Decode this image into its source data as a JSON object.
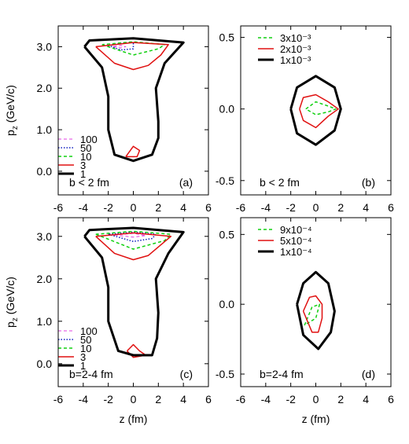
{
  "chart_data": [
    {
      "type": "contour",
      "ylabel": [
        "p",
        "z",
        " (GeV/c)"
      ],
      "xlim": [
        -6,
        6
      ],
      "xticks": [
        -6,
        -4,
        -2,
        0,
        2,
        4,
        6
      ],
      "ylim": [
        -0.57,
        3.5
      ],
      "yticks": [
        {
          "value": 0,
          "label": "0.0"
        },
        {
          "value": 1,
          "label": "1.0"
        },
        {
          "value": 2,
          "label": "2.0"
        },
        {
          "value": 3,
          "label": "3.0"
        }
      ],
      "legend": "lower left",
      "annotation": "b < 2 fm",
      "panel_label": "(a)",
      "series": [
        {
          "name": "100",
          "color": "#e040e0",
          "dash": "dashed",
          "width": 1,
          "x": [
            -1.6,
            -1,
            -0.6,
            -1,
            -1.6
          ],
          "values": [
            3.0,
            2.97,
            3.0,
            3.03,
            3.0
          ]
        },
        {
          "name": "50",
          "color": "#1020c0",
          "dash": "dotted",
          "width": 1.5,
          "x": [
            -2,
            -1,
            0,
            0,
            -1,
            -2
          ],
          "values": [
            3.03,
            2.92,
            2.95,
            3.1,
            3.08,
            3.03
          ]
        },
        {
          "name": "10",
          "color": "#10d010",
          "dash": "dashed",
          "width": 1.5,
          "x": [
            -2.5,
            0,
            2,
            2.5,
            0,
            -2.5
          ],
          "values": [
            3.05,
            2.8,
            2.95,
            3.05,
            3.12,
            3.05
          ]
        },
        {
          "name": "3",
          "color": "#e01010",
          "dash": "solid",
          "width": 1.5,
          "x": [
            -3,
            -1.5,
            0,
            1.2,
            2.2,
            2.8,
            0,
            -3,
            null,
            -0.6,
            0,
            0.5,
            0.3,
            -0.6
          ],
          "values": [
            3.0,
            2.6,
            2.45,
            2.55,
            2.8,
            3.05,
            3.1,
            3.0,
            null,
            0.35,
            0.6,
            0.5,
            0.35,
            0.35
          ]
        },
        {
          "name": "1",
          "color": "#000000",
          "dash": "solid",
          "width": 3,
          "x": [
            -3.9,
            -2.5,
            -2,
            -2,
            -1.5,
            0,
            1.5,
            2,
            2,
            1.8,
            2.5,
            4,
            0,
            -3.5,
            -3.9
          ],
          "values": [
            3.0,
            2.5,
            1.8,
            1.0,
            0.4,
            0.25,
            0.4,
            0.8,
            1.2,
            2.0,
            2.6,
            3.1,
            3.2,
            3.15,
            3.0
          ]
        }
      ]
    },
    {
      "type": "contour",
      "xlim": [
        -6,
        6
      ],
      "xticks": [
        -6,
        -4,
        -2,
        0,
        2,
        4,
        6
      ],
      "ylim": [
        -0.6,
        0.58
      ],
      "yticks": [
        -0.5,
        {
          "value": 0,
          "label": "0.0"
        },
        0.5
      ],
      "legend": "upper left",
      "annotation": "b < 2 fm",
      "panel_label": "(b)",
      "series": [
        {
          "name": "3x10⁻³",
          "color": "#10d010",
          "dash": "dashed",
          "width": 1.5,
          "x": [
            -0.8,
            0,
            1,
            1.6,
            1,
            0,
            -0.8
          ],
          "values": [
            0,
            0.05,
            0.02,
            0,
            -0.02,
            -0.04,
            0
          ]
        },
        {
          "name": "2x10⁻³",
          "color": "#e01010",
          "dash": "solid",
          "width": 1.5,
          "x": [
            -1.3,
            -1,
            0,
            1,
            1.8,
            1,
            0,
            -1,
            -1.3
          ],
          "values": [
            0,
            0.08,
            0.1,
            0.05,
            0,
            -0.05,
            -0.13,
            -0.08,
            0
          ]
        },
        {
          "name": "1x10⁻³",
          "color": "#000000",
          "dash": "solid",
          "width": 3,
          "x": [
            -2,
            -1.5,
            0,
            1.5,
            2,
            1.5,
            0,
            -1.5,
            -2
          ],
          "values": [
            0,
            0.15,
            0.23,
            0.15,
            0,
            -0.15,
            -0.25,
            -0.17,
            0
          ]
        }
      ]
    },
    {
      "type": "contour",
      "ylabel": [
        "p",
        "z",
        " (GeV/c)"
      ],
      "xlabel": "z (fm)",
      "xlim": [
        -6,
        6
      ],
      "xticks": [
        -6,
        -4,
        -2,
        0,
        2,
        4,
        6
      ],
      "ylim": [
        -0.54,
        3.44
      ],
      "yticks": [
        {
          "value": 0,
          "label": "0.0"
        },
        {
          "value": 1,
          "label": "1.0"
        },
        {
          "value": 2,
          "label": "2.0"
        },
        {
          "value": 3,
          "label": "3.0"
        }
      ],
      "legend": "lower left",
      "annotation": "b=2-4 fm",
      "panel_label": "(c)",
      "series": [
        {
          "name": "100",
          "color": "#e040e0",
          "dash": "dashed",
          "width": 1,
          "x": [
            -1.5,
            0,
            1,
            0,
            -1.5
          ],
          "values": [
            3.03,
            2.98,
            3.02,
            3.07,
            3.03
          ]
        },
        {
          "name": "50",
          "color": "#1020c0",
          "dash": "dotted",
          "width": 1.5,
          "x": [
            -2,
            0,
            1.5,
            1.8,
            0,
            -2
          ],
          "values": [
            3.05,
            2.88,
            2.95,
            3.05,
            3.1,
            3.05
          ]
        },
        {
          "name": "10",
          "color": "#10d010",
          "dash": "dashed",
          "width": 1.5,
          "x": [
            -3,
            0,
            2.5,
            3,
            0,
            -3
          ],
          "values": [
            3.05,
            2.7,
            2.9,
            3.05,
            3.12,
            3.05
          ]
        },
        {
          "name": "3",
          "color": "#e01010",
          "dash": "solid",
          "width": 1.5,
          "x": [
            -3,
            -1.5,
            0,
            1.2,
            2.2,
            3,
            0,
            -3,
            null,
            -0.5,
            0,
            0.5,
            1,
            0,
            -0.5
          ],
          "values": [
            3.0,
            2.6,
            2.45,
            2.55,
            2.8,
            3.0,
            3.08,
            3.0,
            null,
            0.3,
            0.45,
            0.3,
            0.2,
            0.15,
            0.3
          ]
        },
        {
          "name": "1",
          "color": "#000000",
          "dash": "solid",
          "width": 3,
          "x": [
            -3.9,
            -2.5,
            -2,
            -2,
            -1.2,
            0,
            1.5,
            1.9,
            2,
            1.8,
            2.8,
            4,
            0,
            -3.5,
            -3.9
          ],
          "values": [
            3.0,
            2.5,
            1.8,
            1.0,
            0.3,
            0.2,
            0.2,
            0.6,
            1.2,
            2.0,
            2.6,
            3.1,
            3.2,
            3.15,
            3.0
          ]
        }
      ]
    },
    {
      "type": "contour",
      "xlabel": "z (fm)",
      "xlim": [
        -6,
        6
      ],
      "xticks": [
        -6,
        -4,
        -2,
        0,
        2,
        4,
        6
      ],
      "ylim": [
        -0.59,
        0.62
      ],
      "yticks": [
        -0.5,
        {
          "value": 0,
          "label": "0.0"
        },
        0.5
      ],
      "legend": "upper left",
      "annotation": "b=2-4 fm",
      "panel_label": "(d)",
      "series": [
        {
          "name": "9x10⁻⁴",
          "color": "#10d010",
          "dash": "dashed",
          "width": 1.5,
          "x": [
            -0.9,
            -0.3,
            0.3,
            0,
            -0.9
          ],
          "values": [
            -0.15,
            -0.02,
            0.0,
            -0.1,
            -0.15
          ]
        },
        {
          "name": "5x10⁻⁴",
          "color": "#e01010",
          "dash": "solid",
          "width": 1.5,
          "x": [
            -1,
            -0.5,
            0,
            0.5,
            0.5,
            0.2,
            -0.3,
            -1
          ],
          "values": [
            -0.05,
            0.05,
            0.06,
            0,
            -0.1,
            -0.2,
            -0.2,
            -0.05
          ]
        },
        {
          "name": "1x10⁻⁴",
          "color": "#000000",
          "dash": "solid",
          "width": 3,
          "x": [
            -1.5,
            -1,
            0,
            1,
            1.5,
            1.2,
            0.2,
            -1,
            -1.5
          ],
          "values": [
            0,
            0.15,
            0.23,
            0.15,
            -0.05,
            -0.2,
            -0.32,
            -0.22,
            0
          ]
        }
      ]
    }
  ]
}
